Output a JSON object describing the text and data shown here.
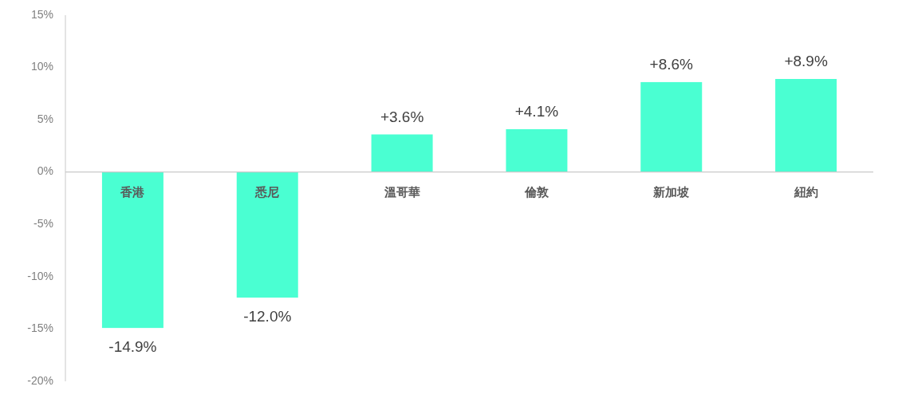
{
  "chart_data": {
    "type": "bar",
    "categories": [
      "香港",
      "悉尼",
      "溫哥華",
      "倫敦",
      "新加坡",
      "紐約"
    ],
    "values": [
      -14.9,
      -12.0,
      3.6,
      4.1,
      8.6,
      8.9
    ],
    "color": "#4affd2",
    "value_labels": [
      "-14.9%",
      "-12.0%",
      "+3.6%",
      "+4.1%",
      "+8.6%",
      "+8.9%"
    ],
    "ylim": [
      -20,
      15
    ],
    "yticks": [
      {
        "value": 15,
        "label": "15%"
      },
      {
        "value": 10,
        "label": "10%"
      },
      {
        "value": 5,
        "label": "5%"
      },
      {
        "value": 0,
        "label": "0%"
      },
      {
        "value": -5,
        "label": "-5%"
      },
      {
        "value": -10,
        "label": "-10%"
      },
      {
        "value": -15,
        "label": "-15%"
      },
      {
        "value": -20,
        "label": "-20%"
      }
    ]
  }
}
